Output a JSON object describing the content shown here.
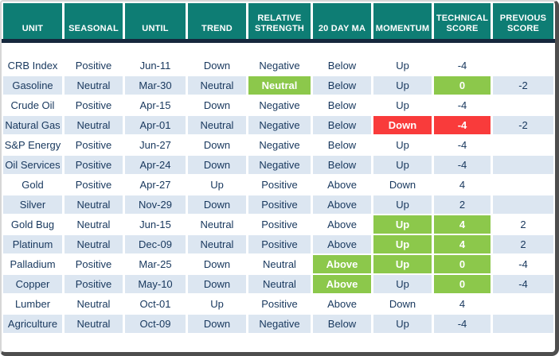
{
  "chart_data": {
    "type": "table",
    "title": "",
    "columns": [
      "UNIT",
      "SEASONAL",
      "UNTIL",
      "TREND",
      "RELATIVE STRENGTH",
      "20 DAY MA",
      "MOMENTUM",
      "TECHNICAL SCORE",
      "PREVIOUS SCORE"
    ],
    "rows": [
      [
        "CRB Index",
        "Positive",
        "Jun-11",
        "Down",
        "Negative",
        "Below",
        "Up",
        "-4",
        ""
      ],
      [
        "Gasoline",
        "Neutral",
        "Mar-30",
        "Neutral",
        "Neutral",
        "Below",
        "Up",
        "0",
        "-2"
      ],
      [
        "Crude Oil",
        "Positive",
        "Apr-15",
        "Down",
        "Negative",
        "Below",
        "Up",
        "-4",
        ""
      ],
      [
        "Natural Gas",
        "Neutral",
        "Apr-01",
        "Neutral",
        "Negative",
        "Below",
        "Down",
        "-4",
        "-2"
      ],
      [
        "S&P Energy",
        "Positive",
        "Jun-27",
        "Down",
        "Negative",
        "Below",
        "Up",
        "-4",
        ""
      ],
      [
        "Oil Services",
        "Positive",
        "Apr-24",
        "Down",
        "Negative",
        "Below",
        "Up",
        "-4",
        ""
      ],
      [
        "Gold",
        "Positive",
        "Apr-27",
        "Up",
        "Positive",
        "Above",
        "Down",
        "4",
        ""
      ],
      [
        "Silver",
        "Neutral",
        "Nov-29",
        "Down",
        "Positive",
        "Above",
        "Up",
        "2",
        ""
      ],
      [
        "Gold Bug",
        "Neutral",
        "Jun-15",
        "Neutral",
        "Positive",
        "Above",
        "Up",
        "4",
        "2"
      ],
      [
        "Platinum",
        "Neutral",
        "Dec-09",
        "Neutral",
        "Positive",
        "Above",
        "Up",
        "4",
        "2"
      ],
      [
        "Palladium",
        "Positive",
        "Mar-25",
        "Down",
        "Neutral",
        "Above",
        "Up",
        "0",
        "-4"
      ],
      [
        "Copper",
        "Positive",
        "May-10",
        "Down",
        "Neutral",
        "Above",
        "Up",
        "0",
        "-4"
      ],
      [
        "Lumber",
        "Neutral",
        "Oct-01",
        "Up",
        "Positive",
        "Above",
        "Down",
        "4",
        ""
      ],
      [
        "Agriculture",
        "Neutral",
        "Oct-09",
        "Down",
        "Negative",
        "Below",
        "Up",
        "-4",
        ""
      ]
    ],
    "cell_highlights": [
      {
        "row": 1,
        "col": 4,
        "color": "green"
      },
      {
        "row": 1,
        "col": 7,
        "color": "green"
      },
      {
        "row": 3,
        "col": 6,
        "color": "red"
      },
      {
        "row": 3,
        "col": 7,
        "color": "red"
      },
      {
        "row": 8,
        "col": 6,
        "color": "green"
      },
      {
        "row": 8,
        "col": 7,
        "color": "green"
      },
      {
        "row": 9,
        "col": 6,
        "color": "green"
      },
      {
        "row": 9,
        "col": 7,
        "color": "green"
      },
      {
        "row": 10,
        "col": 5,
        "color": "green"
      },
      {
        "row": 10,
        "col": 6,
        "color": "green"
      },
      {
        "row": 10,
        "col": 7,
        "color": "green"
      },
      {
        "row": 11,
        "col": 5,
        "color": "green"
      },
      {
        "row": 11,
        "col": 7,
        "color": "green"
      }
    ],
    "legend_position": "none",
    "grid": false
  },
  "colors": {
    "header_bg": "#0e7d74",
    "header_text": "#ffffff",
    "header_separator": "#16283d",
    "row_bg": "#ffffff",
    "stripe_bg": "#dce6f1",
    "body_text": "#17375d",
    "green": "#8cc84b",
    "red": "#f93b3b"
  }
}
